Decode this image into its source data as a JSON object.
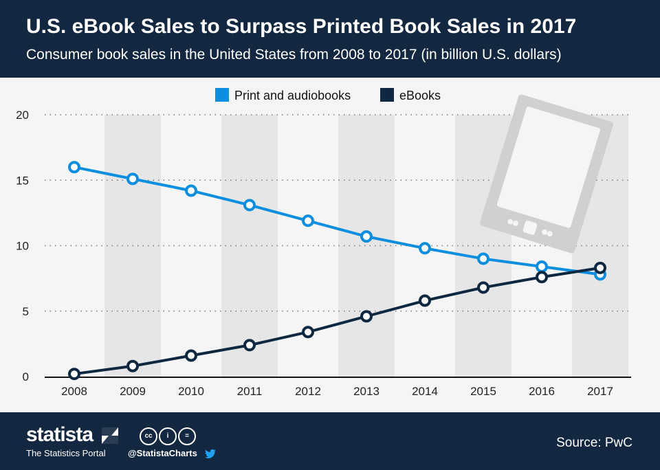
{
  "header": {
    "title": "U.S. eBook Sales to Surpass Printed Book Sales in 2017",
    "subtitle": "Consumer book sales in the United States from 2008 to 2017 (in billion U.S. dollars)"
  },
  "chart_data": {
    "type": "line",
    "categories": [
      "2008",
      "2009",
      "2010",
      "2011",
      "2012",
      "2013",
      "2014",
      "2015",
      "2016",
      "2017"
    ],
    "series": [
      {
        "name": "Print and audiobooks",
        "color": "#0a8ee0",
        "values": [
          16.0,
          15.1,
          14.2,
          13.1,
          11.9,
          10.7,
          9.8,
          9.0,
          8.4,
          7.8
        ]
      },
      {
        "name": "eBooks",
        "color": "#0d2840",
        "values": [
          0.2,
          0.8,
          1.6,
          2.4,
          3.4,
          4.6,
          5.8,
          6.8,
          7.6,
          8.3
        ]
      }
    ],
    "yticks": [
      "0",
      "5",
      "10",
      "15",
      "20"
    ],
    "ylim": [
      0,
      20
    ],
    "grid": true,
    "legend": "top-center"
  },
  "footer": {
    "logo": "statista",
    "portal": "The Statistics Portal",
    "handle": "@StatistaCharts",
    "source": "Source: PwC",
    "cc_icons": [
      "cc",
      "i",
      "="
    ]
  }
}
